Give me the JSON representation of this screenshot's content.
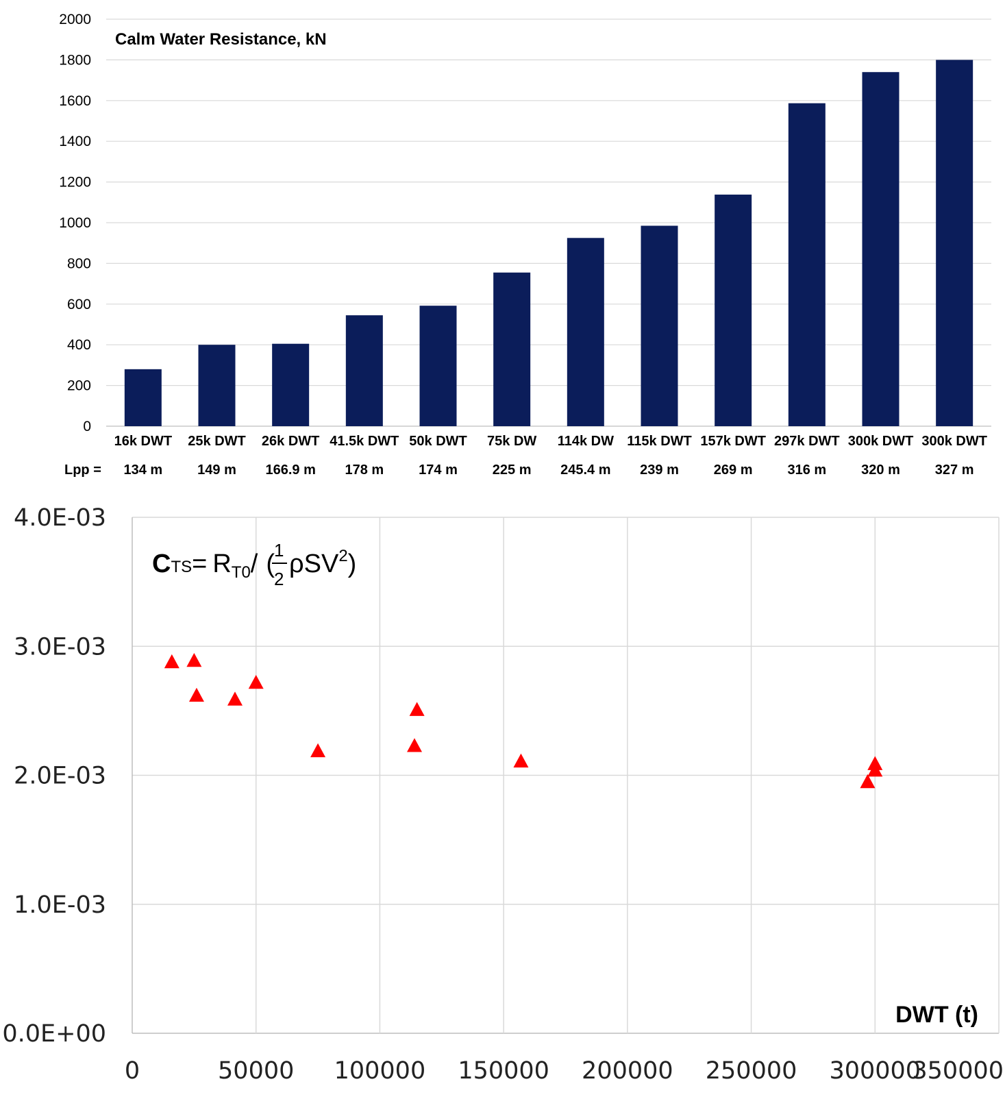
{
  "chart_data": [
    {
      "type": "bar",
      "title": "Calm Water Resistance, kN",
      "categories": [
        "16k DWT",
        "25k DWT",
        "26k DWT",
        "41.5k DWT",
        "50k DWT",
        "75k DW",
        "114k DW",
        "115k DWT",
        "157k DWT",
        "297k DWT",
        "300k DWT",
        "300k DWT"
      ],
      "lpp_label": "Lpp =",
      "lpp": [
        "134 m",
        "149 m",
        "166.9 m",
        "178 m",
        "174 m",
        "225 m",
        "245.4 m",
        "239 m",
        "269 m",
        "316 m",
        "320 m",
        "327 m"
      ],
      "values": [
        280,
        400,
        405,
        545,
        592,
        755,
        925,
        985,
        1138,
        1587,
        1740,
        1800
      ],
      "ylim": [
        0,
        2000
      ],
      "yticks": [
        "0",
        "200",
        "400",
        "600",
        "800",
        "1000",
        "1200",
        "1400",
        "1600",
        "1800",
        "2000"
      ],
      "grid": true,
      "bar_color": "#0b1d5a"
    },
    {
      "type": "scatter",
      "formula": {
        "lhs_main": "C",
        "lhs_sub": "TS",
        "eq": "=",
        "r_main": "R",
        "r_sub": "T0",
        "slash": "/",
        "open": "(",
        "frac_num": "1",
        "frac_den": "2",
        "rho_s": "ρSV",
        "sup": "2",
        "close": ")"
      },
      "xlabel": "DWT (t)",
      "xlim": [
        0,
        350000
      ],
      "ylim": [
        0,
        0.004
      ],
      "xticks": [
        "0",
        "50000",
        "100000",
        "150000",
        "200000",
        "250000",
        "300000",
        "350000"
      ],
      "yticks": [
        "0.0E+00",
        "1.0E-03",
        "2.0E-03",
        "3.0E-03",
        "4.0E-03"
      ],
      "grid": true,
      "marker": "triangle",
      "marker_color": "#ff0000",
      "points": [
        {
          "x": 16000,
          "y": 0.00288
        },
        {
          "x": 25000,
          "y": 0.00289
        },
        {
          "x": 26000,
          "y": 0.00262
        },
        {
          "x": 41500,
          "y": 0.00259
        },
        {
          "x": 50000,
          "y": 0.00272
        },
        {
          "x": 75000,
          "y": 0.00219
        },
        {
          "x": 114000,
          "y": 0.00223
        },
        {
          "x": 115000,
          "y": 0.00251
        },
        {
          "x": 157000,
          "y": 0.00211
        },
        {
          "x": 297000,
          "y": 0.00195
        },
        {
          "x": 300000,
          "y": 0.00209
        },
        {
          "x": 300000,
          "y": 0.00204
        }
      ]
    }
  ]
}
